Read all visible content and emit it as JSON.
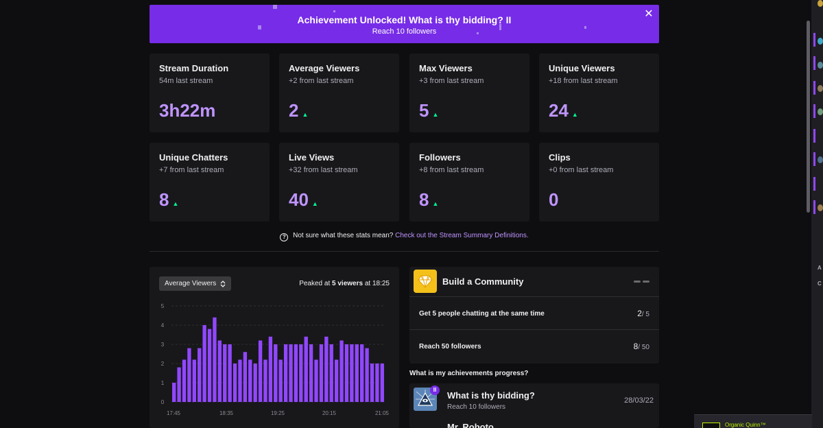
{
  "banner": {
    "title": "Achievement Unlocked! What is thy bidding? II",
    "subtitle": "Reach 10 followers",
    "close_glyph": "✕"
  },
  "stats": [
    {
      "title": "Stream Duration",
      "sub": "54m last stream",
      "value": "3h22m",
      "up": false
    },
    {
      "title": "Average Viewers",
      "sub": "+2 from last stream",
      "value": "2",
      "up": true
    },
    {
      "title": "Max Viewers",
      "sub": "+3 from last stream",
      "value": "5",
      "up": true
    },
    {
      "title": "Unique Viewers",
      "sub": "+18 from last stream",
      "value": "24",
      "up": true
    },
    {
      "title": "Unique Chatters",
      "sub": "+7 from last stream",
      "value": "8",
      "up": true
    },
    {
      "title": "Live Views",
      "sub": "+32 from last stream",
      "value": "40",
      "up": true
    },
    {
      "title": "Followers",
      "sub": "+8 from last stream",
      "value": "8",
      "up": true
    },
    {
      "title": "Clips",
      "sub": "+0 from last stream",
      "value": "0",
      "up": false
    }
  ],
  "help": {
    "question_glyph": "?",
    "text": "Not sure what these stats mean?",
    "link": "Check out the Stream Summary Definitions."
  },
  "chart_panel": {
    "select_label": "Average Viewers",
    "peak_prefix": "Peaked at",
    "peak_value": "5 viewers",
    "peak_suffix": "at 18:25"
  },
  "chart_data": {
    "type": "bar",
    "series": [
      {
        "name": "Average Viewers",
        "values": [
          1,
          1.8,
          2.2,
          2.8,
          2.2,
          2.8,
          4,
          3.8,
          4.4,
          3.2,
          3,
          3,
          2,
          2.2,
          2.6,
          2.2,
          2,
          3.2,
          2.2,
          3.4,
          3,
          2.2,
          3,
          3,
          3,
          3,
          3.4,
          3,
          2.2,
          3,
          3.4,
          3,
          2.2,
          3.2,
          3,
          3,
          3,
          3,
          2.8,
          2,
          2,
          2
        ]
      }
    ],
    "x_tick_labels": [
      "17:45",
      "18:35",
      "19:25",
      "20:15",
      "21:05"
    ],
    "y_ticks": [
      0,
      1,
      2,
      3,
      4,
      5
    ],
    "ylim": [
      0,
      5
    ],
    "grid": true,
    "color": "#9147ff"
  },
  "community": {
    "title": "Build a Community",
    "rows": [
      {
        "label": "Get 5 people chatting at the same time",
        "current": "2",
        "total": "/ 5"
      },
      {
        "label": "Reach 50 followers",
        "current": "8",
        "total": "/ 50"
      }
    ]
  },
  "achievements": {
    "heading": "What is my achievements progress?",
    "badge": "II",
    "title": "What is thy bidding?",
    "sub": "Reach 10 followers",
    "date": "28/03/22",
    "next_title": "Mr. Roboto"
  },
  "side": {
    "letters": [
      "A",
      "C"
    ]
  },
  "mini_player": {
    "name": "Organic Quinn™"
  },
  "colors": {
    "accent": "#772ce8",
    "value_purple": "#bf94ff",
    "arrow_green": "#00f593",
    "card_bg": "#18181b",
    "page_bg": "#0e0e10"
  }
}
